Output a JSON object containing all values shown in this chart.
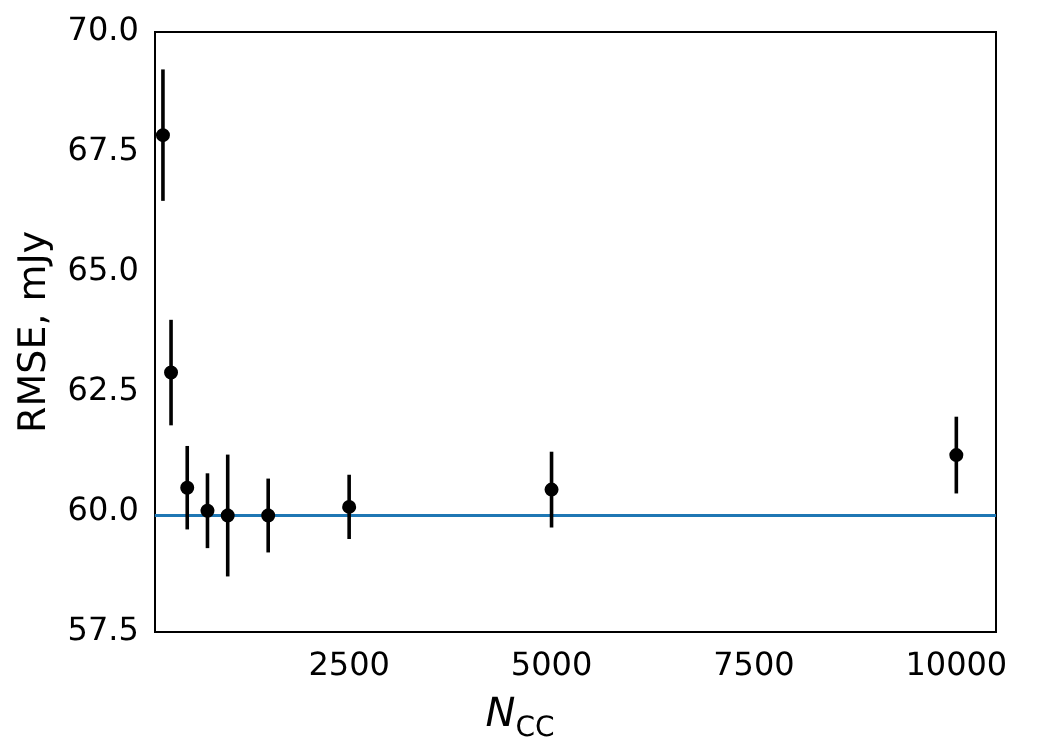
{
  "chart_data": {
    "type": "scatter",
    "xlabel": "N$_{CC}$",
    "ylabel": "RMSE, mJy",
    "x": [
      200,
      300,
      500,
      750,
      1000,
      1500,
      2500,
      5000,
      10000
    ],
    "series": [
      {
        "color": "#000000",
        "values": [
          67.85,
          62.9,
          60.5,
          60.02,
          59.92,
          59.92,
          60.1,
          60.46,
          61.18
        ],
        "errors": [
          1.37,
          1.1,
          0.87,
          0.78,
          1.27,
          0.77,
          0.67,
          0.79,
          0.8
        ]
      }
    ],
    "marker": "circle",
    "xlim": [
      100,
      10490
    ],
    "xticks": [
      2500,
      5000,
      7500,
      10000
    ],
    "ylim": [
      57.5,
      70.0
    ],
    "yticks": [
      {
        "value": 57.5,
        "label": "57.5"
      },
      {
        "value": 60,
        "label": "60.0"
      },
      {
        "value": 62.5,
        "label": "62.5"
      },
      {
        "value": 65,
        "label": "65.0"
      },
      {
        "value": 67.5,
        "label": "67.5"
      },
      {
        "value": 70,
        "label": "70.0"
      }
    ],
    "ref_lines": [
      {
        "axis": "y",
        "value": 59.92,
        "color": "#1f77b4"
      }
    ],
    "grid": false,
    "legend": false
  }
}
